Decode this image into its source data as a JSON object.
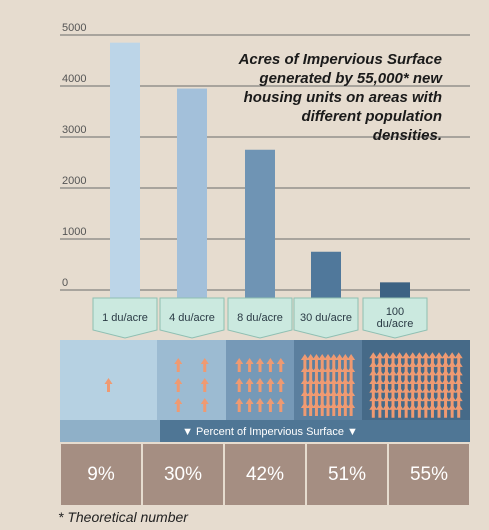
{
  "chart_data": {
    "type": "bar",
    "title": "Acres of Impervious Surface generated by 55,000* new housing units on areas with different population densities.",
    "categories": [
      "1 du/acre",
      "4 du/acre",
      "8 du/acre",
      "30 du/acre",
      "100 du/acre"
    ],
    "values": [
      4850,
      3950,
      2750,
      750,
      150
    ],
    "colors": [
      "#bcd5e8",
      "#a3c0da",
      "#6f94b4",
      "#50789b",
      "#3c6283"
    ],
    "ylim": [
      0,
      5000
    ],
    "yticks": [
      0,
      1000,
      2000,
      3000,
      4000,
      5000
    ],
    "grid": true,
    "impervious_label": "Percent of Impervious Surface",
    "impervious_percent": [
      9,
      30,
      42,
      51,
      55
    ],
    "impervious_value_labels": [
      "9%",
      "30%",
      "42%",
      "51%",
      "55%"
    ],
    "footnote": "* Theoretical number"
  }
}
